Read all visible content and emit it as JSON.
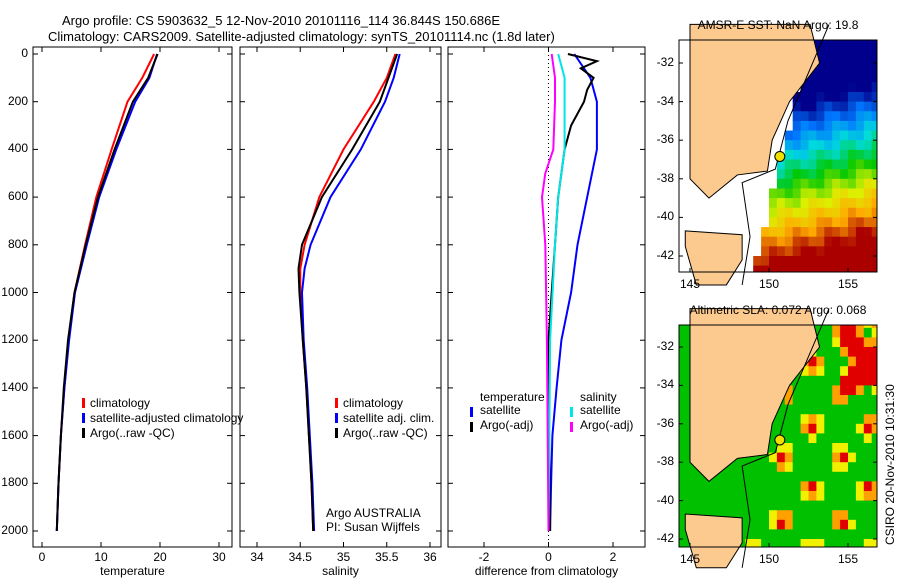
{
  "title_line1": "Argo profile: CS 5903632_5 12-Nov-2010 20101116_114 36.844S 150.686E",
  "title_line2": "Climatology: CARS2009. Satellite-adjusted climatology: synTS_20101114.nc (1.8d later)",
  "side_label": "CSIRO 20-Nov-2010 10:31:30",
  "chart_data": [
    {
      "type": "line",
      "xlabel": "temperature",
      "ylabel": "",
      "xlim": [
        -1,
        31
      ],
      "ylim": [
        2000,
        0
      ],
      "xticks": [
        "0",
        "10",
        "20",
        "30"
      ],
      "yticks": [
        "0",
        "200",
        "400",
        "600",
        "800",
        "1000",
        "1200",
        "1400",
        "1600",
        "1800",
        "2000"
      ],
      "legend": [
        "climatology",
        "satellite-adjusted climatology",
        "Argo(..raw -QC)"
      ],
      "series": [
        {
          "name": "climatology",
          "color": "#ff0000",
          "depth": [
            0,
            100,
            200,
            400,
            600,
            800,
            1000,
            1200,
            1400,
            1600,
            1800,
            2000
          ],
          "values": [
            19,
            17,
            14.5,
            11.8,
            9.2,
            7.3,
            5.5,
            4.5,
            3.8,
            3.2,
            2.8,
            2.5
          ]
        },
        {
          "name": "satellite-adjusted climatology",
          "color": "#0000ff",
          "depth": [
            0,
            100,
            200,
            400,
            600,
            800,
            1000,
            1200,
            1400,
            1600,
            1800,
            2000
          ],
          "values": [
            19.5,
            18.2,
            15.8,
            12.6,
            9.7,
            7.6,
            5.6,
            4.6,
            3.8,
            3.2,
            2.8,
            2.5
          ]
        },
        {
          "name": "Argo(..raw -QC)",
          "color": "#000000",
          "depth": [
            0,
            100,
            200,
            400,
            600,
            800,
            1000,
            1200,
            1400,
            1600,
            1800,
            2000
          ],
          "values": [
            19.6,
            18,
            15.4,
            12.3,
            9.5,
            7.4,
            5.5,
            4.4,
            3.7,
            3.2,
            2.8,
            2.5
          ]
        }
      ]
    },
    {
      "type": "line",
      "xlabel": "salinity",
      "xlim": [
        33.8,
        36.1
      ],
      "ylim": [
        2000,
        0
      ],
      "xticks": [
        "34",
        "34.5",
        "35",
        "35.5",
        "36"
      ],
      "legend": [
        "climatology",
        "satellite adj. clim.",
        "Argo(..raw -QC)"
      ],
      "annotation": [
        "Argo AUSTRALIA",
        "PI: Susan Wijffels"
      ],
      "series": [
        {
          "name": "climatology",
          "color": "#ff0000",
          "depth": [
            0,
            100,
            200,
            400,
            600,
            800,
            900,
            1000,
            1200,
            1400,
            1600,
            1800,
            2000
          ],
          "values": [
            35.6,
            35.5,
            35.35,
            35.0,
            34.72,
            34.55,
            34.5,
            34.5,
            34.53,
            34.57,
            34.6,
            34.63,
            34.65
          ]
        },
        {
          "name": "satellite adj. clim.",
          "color": "#0000ff",
          "depth": [
            0,
            100,
            200,
            400,
            600,
            800,
            900,
            1000,
            1200,
            1400,
            1600,
            1800,
            2000
          ],
          "values": [
            35.65,
            35.58,
            35.48,
            35.2,
            34.85,
            34.62,
            34.55,
            34.52,
            34.54,
            34.58,
            34.61,
            34.64,
            34.66
          ]
        },
        {
          "name": "Argo(..raw -QC)",
          "color": "#000000",
          "depth": [
            0,
            100,
            200,
            400,
            600,
            800,
            900,
            1000,
            1200,
            1400,
            1600,
            1800,
            2000
          ],
          "values": [
            35.62,
            35.52,
            35.42,
            35.1,
            34.75,
            34.52,
            34.48,
            34.49,
            34.53,
            34.57,
            34.6,
            34.63,
            34.65
          ]
        }
      ]
    },
    {
      "type": "line",
      "xlabel": "difference from climatology",
      "xlim": [
        -3,
        3
      ],
      "ylim": [
        2000,
        0
      ],
      "xticks": [
        "-2",
        "0",
        "2"
      ],
      "legend_titles": [
        "temperature",
        "salinity"
      ],
      "legend": [
        "satellite",
        "Argo(-adj)",
        "satellite",
        "Argo(-adj)"
      ],
      "series": [
        {
          "name": "temperature satellite",
          "color": "#0000ff",
          "depth": [
            0,
            100,
            200,
            400,
            600,
            800,
            1000,
            1200,
            1400,
            1600,
            1800,
            2000
          ],
          "values": [
            0.8,
            1.3,
            1.5,
            1.5,
            1.2,
            0.9,
            0.7,
            0.4,
            0.25,
            0.12,
            0.08,
            0.05
          ]
        },
        {
          "name": "temperature Argo(-adj)",
          "color": "#000000",
          "depth": [
            0,
            30,
            60,
            100,
            150,
            200,
            300,
            400,
            600,
            800,
            1000,
            1200,
            1400,
            2000
          ],
          "values": [
            0.6,
            1.5,
            1.0,
            1.4,
            1.2,
            1.1,
            0.7,
            0.5,
            0.3,
            0.2,
            0.1,
            0.0,
            0.0,
            0.05
          ]
        },
        {
          "name": "salinity satellite",
          "color": "#00e5e5",
          "depth": [
            0,
            100,
            200,
            400,
            600,
            800,
            1200,
            2000
          ],
          "values": [
            0.3,
            0.5,
            0.5,
            0.5,
            0.3,
            0.2,
            0.05,
            0.0
          ]
        },
        {
          "name": "salinity Argo(-adj)",
          "color": "#ff00ff",
          "depth": [
            0,
            100,
            200,
            400,
            500,
            600,
            800,
            1200,
            2000
          ],
          "values": [
            0.1,
            0.2,
            0.2,
            0.15,
            -0.1,
            -0.2,
            -0.1,
            -0.05,
            0.0
          ]
        }
      ]
    }
  ],
  "maps": [
    {
      "title": "AMSR-E SST: NaN Argo: 19.8",
      "xticks": [
        "145",
        "150",
        "155"
      ],
      "yticks": [
        "-32",
        "-34",
        "-36",
        "-38",
        "-40",
        "-42"
      ]
    },
    {
      "title": "Altimetric SLA: 0.072 Argo: 0.068",
      "xticks": [
        "145",
        "150",
        "155"
      ],
      "yticks": [
        "-32",
        "-34",
        "-36",
        "-38",
        "-40",
        "-42"
      ]
    }
  ]
}
